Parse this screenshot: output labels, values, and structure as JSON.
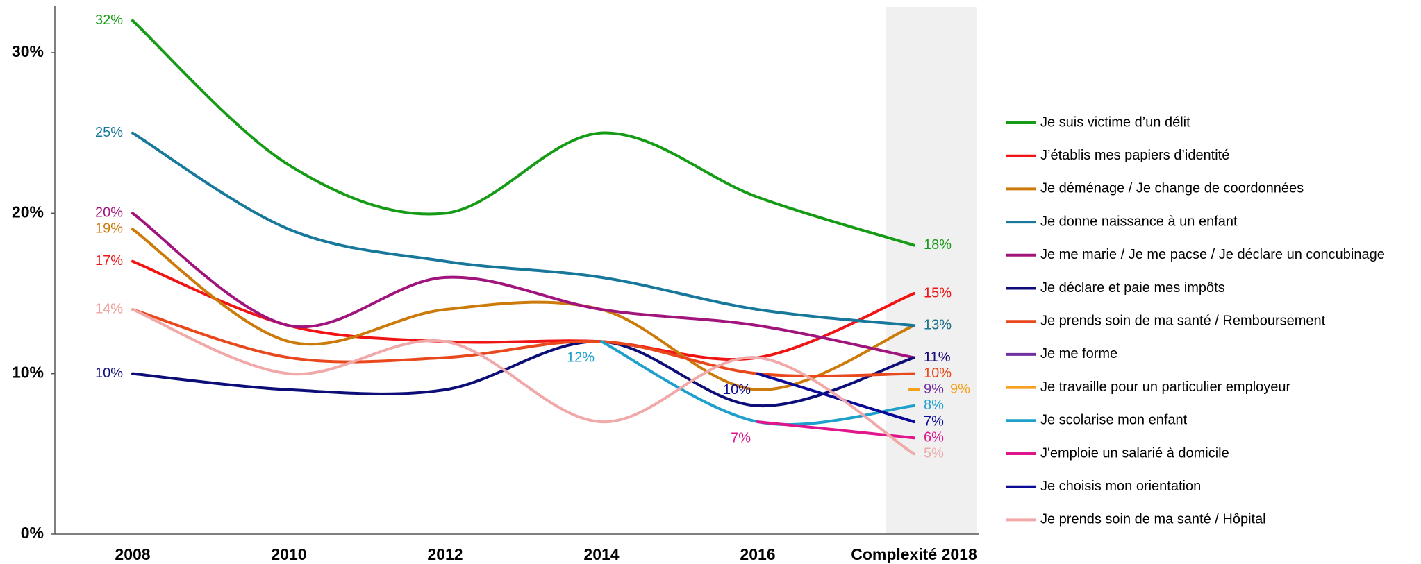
{
  "chart_data": {
    "type": "line",
    "categories": [
      "2008",
      "2010",
      "2012",
      "2014",
      "2016",
      "Complexité 2018"
    ],
    "ylim": [
      0,
      33
    ],
    "yticks": [
      {
        "value": 0,
        "label": "0%"
      },
      {
        "value": 10,
        "label": "10%"
      },
      {
        "value": 20,
        "label": "20%"
      },
      {
        "value": 30,
        "label": "30%"
      }
    ],
    "legend": "right",
    "series": [
      {
        "name": "Je suis victime d’un délit",
        "color": "#169b16",
        "values": [
          32,
          23,
          20,
          25,
          21,
          18
        ],
        "value_labels": [
          "32%",
          null,
          null,
          null,
          null,
          "18%"
        ]
      },
      {
        "name": "J’établis mes papiers d’identité",
        "color": "#f01414",
        "values": [
          17,
          13,
          12,
          12,
          11,
          15
        ],
        "value_labels": [
          "17%",
          null,
          null,
          null,
          null,
          "15%"
        ]
      },
      {
        "name": "Je déménage / Je change de coordonnées",
        "color": "#cc7a0a",
        "values": [
          19,
          12,
          14,
          14,
          9,
          13
        ],
        "value_labels": [
          "19%",
          null,
          null,
          null,
          null,
          "13%"
        ]
      },
      {
        "name": "Je donne naissance à un enfant",
        "color": "#17789c",
        "values": [
          25,
          19,
          17,
          16,
          14,
          13
        ],
        "value_labels": [
          "25%",
          null,
          null,
          null,
          null,
          "13%"
        ]
      },
      {
        "name": "Je me marie / Je me pacse / Je déclare un concubinage",
        "color": "#a0147c",
        "values": [
          20,
          13,
          16,
          14,
          13,
          11
        ],
        "value_labels": [
          "20%",
          null,
          null,
          null,
          null,
          "11%"
        ]
      },
      {
        "name": "Je déclare et paie mes impôts",
        "color": "#0d0d78",
        "values": [
          10,
          9,
          9,
          12,
          8,
          11
        ],
        "value_labels": [
          "10%",
          null,
          null,
          null,
          null,
          "11%"
        ]
      },
      {
        "name": "Je prends soin de ma santé / Remboursement",
        "color": "#e8481c",
        "values": [
          14,
          11,
          11,
          12,
          10,
          10
        ],
        "value_labels": [
          "14%",
          null,
          null,
          null,
          null,
          "10%"
        ]
      },
      {
        "name": "Je me forme",
        "color": "#7030a0",
        "values": [
          null,
          null,
          null,
          null,
          null,
          9
        ],
        "value_labels": [
          null,
          null,
          null,
          null,
          null,
          "9%"
        ]
      },
      {
        "name": "Je travaille pour un particulier employeur",
        "color": "#f5a01e",
        "values": [
          null,
          null,
          null,
          null,
          null,
          9
        ],
        "value_labels": [
          null,
          null,
          null,
          null,
          null,
          "9%"
        ]
      },
      {
        "name": "Je scolarise mon enfant",
        "color": "#1fa0cc",
        "values": [
          null,
          null,
          null,
          12,
          7,
          8
        ],
        "value_labels": [
          null,
          null,
          null,
          "12%",
          null,
          "8%"
        ]
      },
      {
        "name": "J'emploie un salarié à domicile",
        "color": "#e0168c",
        "values": [
          null,
          null,
          null,
          null,
          7,
          6
        ],
        "value_labels": [
          null,
          null,
          null,
          null,
          "7%",
          "6%"
        ]
      },
      {
        "name": "Je choisis mon orientation",
        "color": "#0a0a96",
        "values": [
          null,
          null,
          null,
          null,
          10,
          7
        ],
        "value_labels": [
          null,
          null,
          null,
          null,
          "10%",
          "7%"
        ]
      },
      {
        "name": "Je prends soin de ma santé / Hôpital",
        "color": "#f0a8a8",
        "values": [
          14,
          10,
          12,
          7,
          11,
          5
        ],
        "value_labels": [
          "14%",
          null,
          null,
          null,
          null,
          "5%"
        ]
      }
    ]
  }
}
